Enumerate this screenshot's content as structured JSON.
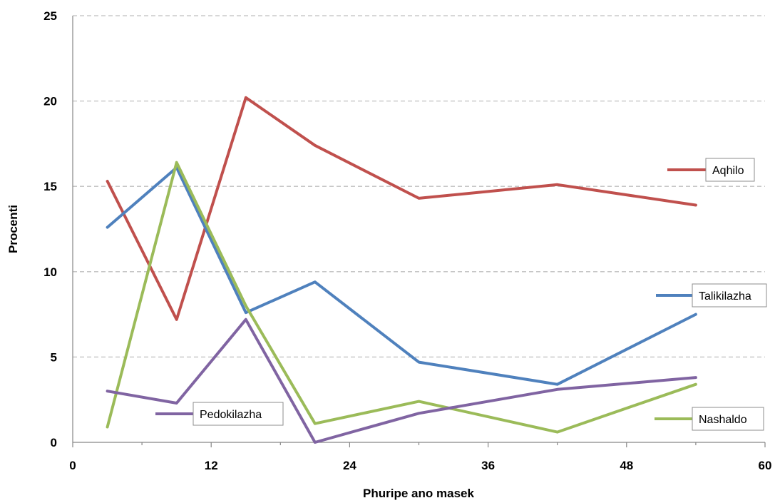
{
  "chart_data": {
    "type": "line",
    "xlabel": "Phuripe ano masek",
    "ylabel": "Procenti",
    "xlim": [
      0,
      60
    ],
    "ylim": [
      0,
      25
    ],
    "xticks": [
      "0",
      "12",
      "24",
      "36",
      "48",
      "60"
    ],
    "yticks": [
      "0",
      "5",
      "10",
      "15",
      "20",
      "25"
    ],
    "grid": "horizontal dashed",
    "x": [
      3,
      9,
      15,
      21,
      30,
      42,
      54
    ],
    "series": [
      {
        "name": "Aqhilo",
        "color": "#c0504d",
        "values": [
          15.3,
          7.2,
          20.2,
          17.4,
          14.3,
          15.1,
          13.9
        ]
      },
      {
        "name": "Talikilazha",
        "color": "#4f81bd",
        "values": [
          12.6,
          16.1,
          7.6,
          9.4,
          4.7,
          3.4,
          7.5
        ]
      },
      {
        "name": "Nashaldo",
        "color": "#9bbb59",
        "values": [
          0.9,
          16.4,
          8.0,
          1.1,
          2.4,
          0.6,
          3.4
        ]
      },
      {
        "name": "Pedokilazha",
        "color": "#8064a2",
        "values": [
          3.0,
          2.3,
          7.2,
          0.0,
          1.7,
          3.1,
          3.8
        ]
      }
    ]
  }
}
